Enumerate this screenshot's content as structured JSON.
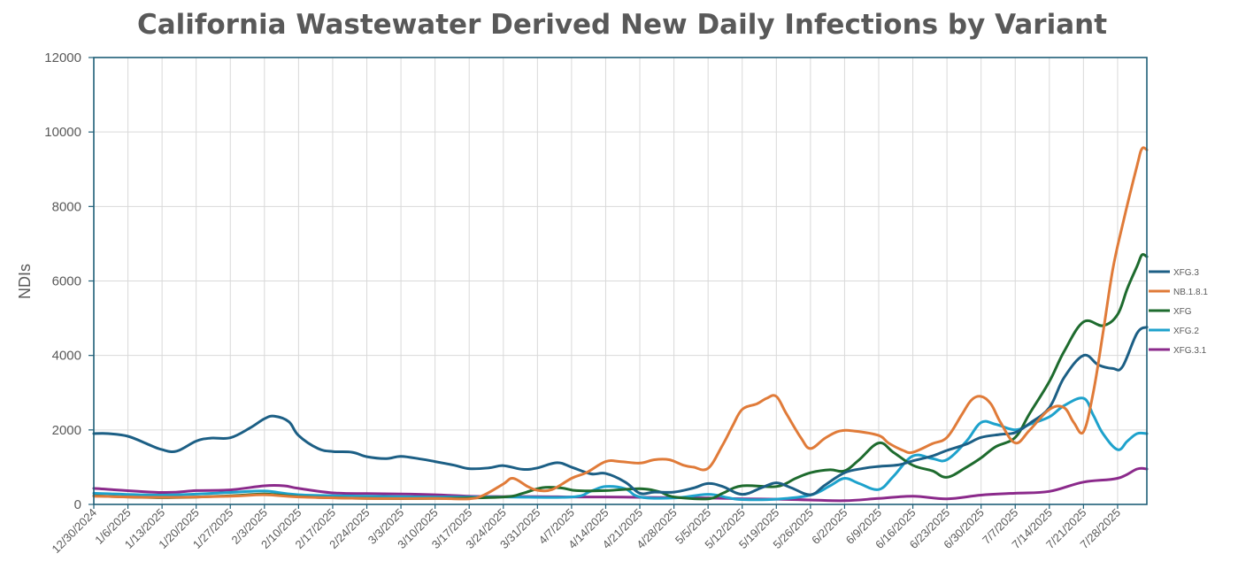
{
  "chart_data": {
    "type": "line",
    "title": "California Wastewater Derived New Daily Infections by Variant",
    "ylabel": "NDIs",
    "xlabel": "",
    "ylim": [
      0,
      12000
    ],
    "yticks": [
      0,
      2000,
      4000,
      6000,
      8000,
      10000,
      12000
    ],
    "x_start": "12/30/2024",
    "x_end": "8/3/2025",
    "xtick_labels": [
      "12/30/2024",
      "1/6/2025",
      "1/13/2025",
      "1/20/2025",
      "1/27/2025",
      "2/3/2025",
      "2/10/2025",
      "2/17/2025",
      "2/24/2025",
      "3/3/2025",
      "3/10/2025",
      "3/17/2025",
      "3/24/2025",
      "3/31/2025",
      "4/7/2025",
      "4/14/2025",
      "4/21/2025",
      "4/28/2025",
      "5/5/2025",
      "5/12/2025",
      "5/19/2025",
      "5/26/2025",
      "6/2/2025",
      "6/9/2025",
      "6/16/2025",
      "6/23/2025",
      "6/30/2025",
      "7/7/2025",
      "7/14/2025",
      "7/21/2025",
      "7/28/2025"
    ],
    "grid": true,
    "legend_position": "right",
    "series": [
      {
        "name": "XFG.3",
        "color": "#1c5f85",
        "points": [
          [
            "12/30/2024",
            1900
          ],
          [
            "1/2/2025",
            1900
          ],
          [
            "1/6/2025",
            1830
          ],
          [
            "1/10/2025",
            1620
          ],
          [
            "1/13/2025",
            1470
          ],
          [
            "1/16/2025",
            1430
          ],
          [
            "1/20/2025",
            1700
          ],
          [
            "1/23/2025",
            1780
          ],
          [
            "1/27/2025",
            1790
          ],
          [
            "1/31/2025",
            2050
          ],
          [
            "2/3/2025",
            2300
          ],
          [
            "2/5/2025",
            2370
          ],
          [
            "2/8/2025",
            2220
          ],
          [
            "2/10/2025",
            1850
          ],
          [
            "2/14/2025",
            1500
          ],
          [
            "2/17/2025",
            1420
          ],
          [
            "2/21/2025",
            1400
          ],
          [
            "2/24/2025",
            1280
          ],
          [
            "2/28/2025",
            1230
          ],
          [
            "3/3/2025",
            1290
          ],
          [
            "3/7/2025",
            1220
          ],
          [
            "3/10/2025",
            1150
          ],
          [
            "3/14/2025",
            1050
          ],
          [
            "3/17/2025",
            960
          ],
          [
            "3/21/2025",
            980
          ],
          [
            "3/24/2025",
            1040
          ],
          [
            "3/28/2025",
            940
          ],
          [
            "3/31/2025",
            980
          ],
          [
            "4/4/2025",
            1120
          ],
          [
            "4/7/2025",
            1000
          ],
          [
            "4/11/2025",
            820
          ],
          [
            "4/14/2025",
            830
          ],
          [
            "4/18/2025",
            600
          ],
          [
            "4/21/2025",
            300
          ],
          [
            "4/24/2025",
            330
          ],
          [
            "4/28/2025",
            330
          ],
          [
            "5/2/2025",
            440
          ],
          [
            "5/5/2025",
            560
          ],
          [
            "5/8/2025",
            480
          ],
          [
            "5/12/2025",
            270
          ],
          [
            "5/16/2025",
            450
          ],
          [
            "5/19/2025",
            580
          ],
          [
            "5/22/2025",
            450
          ],
          [
            "5/26/2025",
            260
          ],
          [
            "5/29/2025",
            520
          ],
          [
            "6/2/2025",
            850
          ],
          [
            "6/6/2025",
            970
          ],
          [
            "6/9/2025",
            1020
          ],
          [
            "6/13/2025",
            1060
          ],
          [
            "6/16/2025",
            1170
          ],
          [
            "6/20/2025",
            1300
          ],
          [
            "6/23/2025",
            1450
          ],
          [
            "6/27/2025",
            1620
          ],
          [
            "6/30/2025",
            1800
          ],
          [
            "7/4/2025",
            1880
          ],
          [
            "7/7/2025",
            1930
          ],
          [
            "7/10/2025",
            2180
          ],
          [
            "7/14/2025",
            2600
          ],
          [
            "7/17/2025",
            3400
          ],
          [
            "7/21/2025",
            4000
          ],
          [
            "7/24/2025",
            3750
          ],
          [
            "7/27/2025",
            3650
          ],
          [
            "7/29/2025",
            3700
          ],
          [
            "8/1/2025",
            4600
          ],
          [
            "8/3/2025",
            4760
          ]
        ]
      },
      {
        "name": "NB.1.8.1",
        "color": "#e07b39",
        "points": [
          [
            "12/30/2024",
            220
          ],
          [
            "1/13/2025",
            190
          ],
          [
            "1/27/2025",
            220
          ],
          [
            "2/3/2025",
            260
          ],
          [
            "2/10/2025",
            200
          ],
          [
            "2/24/2025",
            160
          ],
          [
            "3/10/2025",
            160
          ],
          [
            "3/17/2025",
            150
          ],
          [
            "3/20/2025",
            250
          ],
          [
            "3/24/2025",
            550
          ],
          [
            "3/26/2025",
            700
          ],
          [
            "3/29/2025",
            480
          ],
          [
            "3/31/2025",
            380
          ],
          [
            "4/3/2025",
            400
          ],
          [
            "4/7/2025",
            700
          ],
          [
            "4/10/2025",
            850
          ],
          [
            "4/14/2025",
            1150
          ],
          [
            "4/17/2025",
            1150
          ],
          [
            "4/21/2025",
            1110
          ],
          [
            "4/24/2025",
            1200
          ],
          [
            "4/27/2025",
            1200
          ],
          [
            "4/30/2025",
            1050
          ],
          [
            "5/2/2025",
            1000
          ],
          [
            "5/5/2025",
            970
          ],
          [
            "5/8/2025",
            1600
          ],
          [
            "5/10/2025",
            2100
          ],
          [
            "5/12/2025",
            2550
          ],
          [
            "5/15/2025",
            2700
          ],
          [
            "5/17/2025",
            2850
          ],
          [
            "5/19/2025",
            2900
          ],
          [
            "5/21/2025",
            2450
          ],
          [
            "5/24/2025",
            1800
          ],
          [
            "5/26/2025",
            1500
          ],
          [
            "5/29/2025",
            1780
          ],
          [
            "6/1/2025",
            1970
          ],
          [
            "6/4/2025",
            1970
          ],
          [
            "6/9/2025",
            1850
          ],
          [
            "6/11/2025",
            1650
          ],
          [
            "6/14/2025",
            1450
          ],
          [
            "6/16/2025",
            1400
          ],
          [
            "6/20/2025",
            1630
          ],
          [
            "6/23/2025",
            1800
          ],
          [
            "6/26/2025",
            2400
          ],
          [
            "6/28/2025",
            2800
          ],
          [
            "6/30/2025",
            2900
          ],
          [
            "7/2/2025",
            2700
          ],
          [
            "7/4/2025",
            2200
          ],
          [
            "7/7/2025",
            1650
          ],
          [
            "7/10/2025",
            2000
          ],
          [
            "7/14/2025",
            2550
          ],
          [
            "7/17/2025",
            2600
          ],
          [
            "7/19/2025",
            2200
          ],
          [
            "7/21/2025",
            1950
          ],
          [
            "7/23/2025",
            3000
          ],
          [
            "7/25/2025",
            4600
          ],
          [
            "7/27/2025",
            6300
          ],
          [
            "7/29/2025",
            7500
          ],
          [
            "8/1/2025",
            9100
          ],
          [
            "8/2/2025",
            9550
          ],
          [
            "8/3/2025",
            9520
          ]
        ]
      },
      {
        "name": "XFG",
        "color": "#1e6b2e",
        "points": [
          [
            "12/30/2024",
            230
          ],
          [
            "1/13/2025",
            180
          ],
          [
            "1/27/2025",
            230
          ],
          [
            "2/3/2025",
            280
          ],
          [
            "2/10/2025",
            210
          ],
          [
            "2/24/2025",
            160
          ],
          [
            "3/10/2025",
            160
          ],
          [
            "3/24/2025",
            200
          ],
          [
            "3/28/2025",
            300
          ],
          [
            "4/1/2025",
            450
          ],
          [
            "4/5/2025",
            440
          ],
          [
            "4/8/2025",
            370
          ],
          [
            "4/14/2025",
            370
          ],
          [
            "4/21/2025",
            420
          ],
          [
            "4/25/2025",
            340
          ],
          [
            "4/28/2025",
            200
          ],
          [
            "5/5/2025",
            150
          ],
          [
            "5/8/2025",
            300
          ],
          [
            "5/12/2025",
            500
          ],
          [
            "5/19/2025",
            480
          ],
          [
            "5/23/2025",
            700
          ],
          [
            "5/26/2025",
            850
          ],
          [
            "5/30/2025",
            930
          ],
          [
            "6/2/2025",
            900
          ],
          [
            "6/5/2025",
            1200
          ],
          [
            "6/9/2025",
            1650
          ],
          [
            "6/12/2025",
            1400
          ],
          [
            "6/16/2025",
            1050
          ],
          [
            "6/20/2025",
            900
          ],
          [
            "6/23/2025",
            730
          ],
          [
            "6/27/2025",
            1000
          ],
          [
            "6/30/2025",
            1250
          ],
          [
            "7/3/2025",
            1550
          ],
          [
            "7/7/2025",
            1800
          ],
          [
            "7/10/2025",
            2450
          ],
          [
            "7/14/2025",
            3300
          ],
          [
            "7/17/2025",
            4100
          ],
          [
            "7/21/2025",
            4900
          ],
          [
            "7/25/2025",
            4800
          ],
          [
            "7/28/2025",
            5100
          ],
          [
            "7/30/2025",
            5800
          ],
          [
            "8/1/2025",
            6400
          ],
          [
            "8/2/2025",
            6700
          ],
          [
            "8/3/2025",
            6650
          ]
        ]
      },
      {
        "name": "XFG.2",
        "color": "#1ea2cc",
        "points": [
          [
            "12/30/2024",
            300
          ],
          [
            "1/13/2025",
            250
          ],
          [
            "1/27/2025",
            320
          ],
          [
            "2/3/2025",
            360
          ],
          [
            "2/10/2025",
            260
          ],
          [
            "2/24/2025",
            220
          ],
          [
            "3/10/2025",
            200
          ],
          [
            "3/24/2025",
            200
          ],
          [
            "4/7/2025",
            200
          ],
          [
            "4/11/2025",
            360
          ],
          [
            "4/14/2025",
            480
          ],
          [
            "4/18/2025",
            420
          ],
          [
            "4/21/2025",
            200
          ],
          [
            "4/28/2025",
            170
          ],
          [
            "5/5/2025",
            270
          ],
          [
            "5/9/2025",
            180
          ],
          [
            "5/12/2025",
            130
          ],
          [
            "5/19/2025",
            140
          ],
          [
            "5/26/2025",
            250
          ],
          [
            "5/30/2025",
            500
          ],
          [
            "6/2/2025",
            700
          ],
          [
            "6/5/2025",
            560
          ],
          [
            "6/9/2025",
            400
          ],
          [
            "6/12/2025",
            750
          ],
          [
            "6/16/2025",
            1300
          ],
          [
            "6/20/2025",
            1230
          ],
          [
            "6/23/2025",
            1200
          ],
          [
            "6/27/2025",
            1700
          ],
          [
            "6/30/2025",
            2200
          ],
          [
            "7/3/2025",
            2150
          ],
          [
            "7/7/2025",
            2000
          ],
          [
            "7/10/2025",
            2150
          ],
          [
            "7/14/2025",
            2350
          ],
          [
            "7/17/2025",
            2650
          ],
          [
            "7/21/2025",
            2850
          ],
          [
            "7/23/2025",
            2400
          ],
          [
            "7/25/2025",
            1900
          ],
          [
            "7/28/2025",
            1470
          ],
          [
            "7/30/2025",
            1700
          ],
          [
            "8/1/2025",
            1900
          ],
          [
            "8/3/2025",
            1900
          ]
        ]
      },
      {
        "name": "XFG.3.1",
        "color": "#8b2a8b",
        "points": [
          [
            "12/30/2024",
            430
          ],
          [
            "1/13/2025",
            320
          ],
          [
            "1/20/2025",
            370
          ],
          [
            "1/27/2025",
            390
          ],
          [
            "2/3/2025",
            500
          ],
          [
            "2/7/2025",
            500
          ],
          [
            "2/10/2025",
            430
          ],
          [
            "2/17/2025",
            310
          ],
          [
            "2/24/2025",
            290
          ],
          [
            "3/3/2025",
            280
          ],
          [
            "3/10/2025",
            260
          ],
          [
            "3/17/2025",
            220
          ],
          [
            "3/24/2025",
            210
          ],
          [
            "3/31/2025",
            210
          ],
          [
            "4/7/2025",
            200
          ],
          [
            "4/14/2025",
            200
          ],
          [
            "4/21/2025",
            190
          ],
          [
            "4/28/2025",
            180
          ],
          [
            "5/5/2025",
            170
          ],
          [
            "5/12/2025",
            150
          ],
          [
            "5/19/2025",
            140
          ],
          [
            "5/26/2025",
            120
          ],
          [
            "6/2/2025",
            100
          ],
          [
            "6/9/2025",
            160
          ],
          [
            "6/16/2025",
            220
          ],
          [
            "6/23/2025",
            150
          ],
          [
            "6/30/2025",
            250
          ],
          [
            "7/7/2025",
            300
          ],
          [
            "7/14/2025",
            350
          ],
          [
            "7/21/2025",
            600
          ],
          [
            "7/28/2025",
            700
          ],
          [
            "8/1/2025",
            950
          ],
          [
            "8/3/2025",
            950
          ]
        ]
      }
    ]
  }
}
